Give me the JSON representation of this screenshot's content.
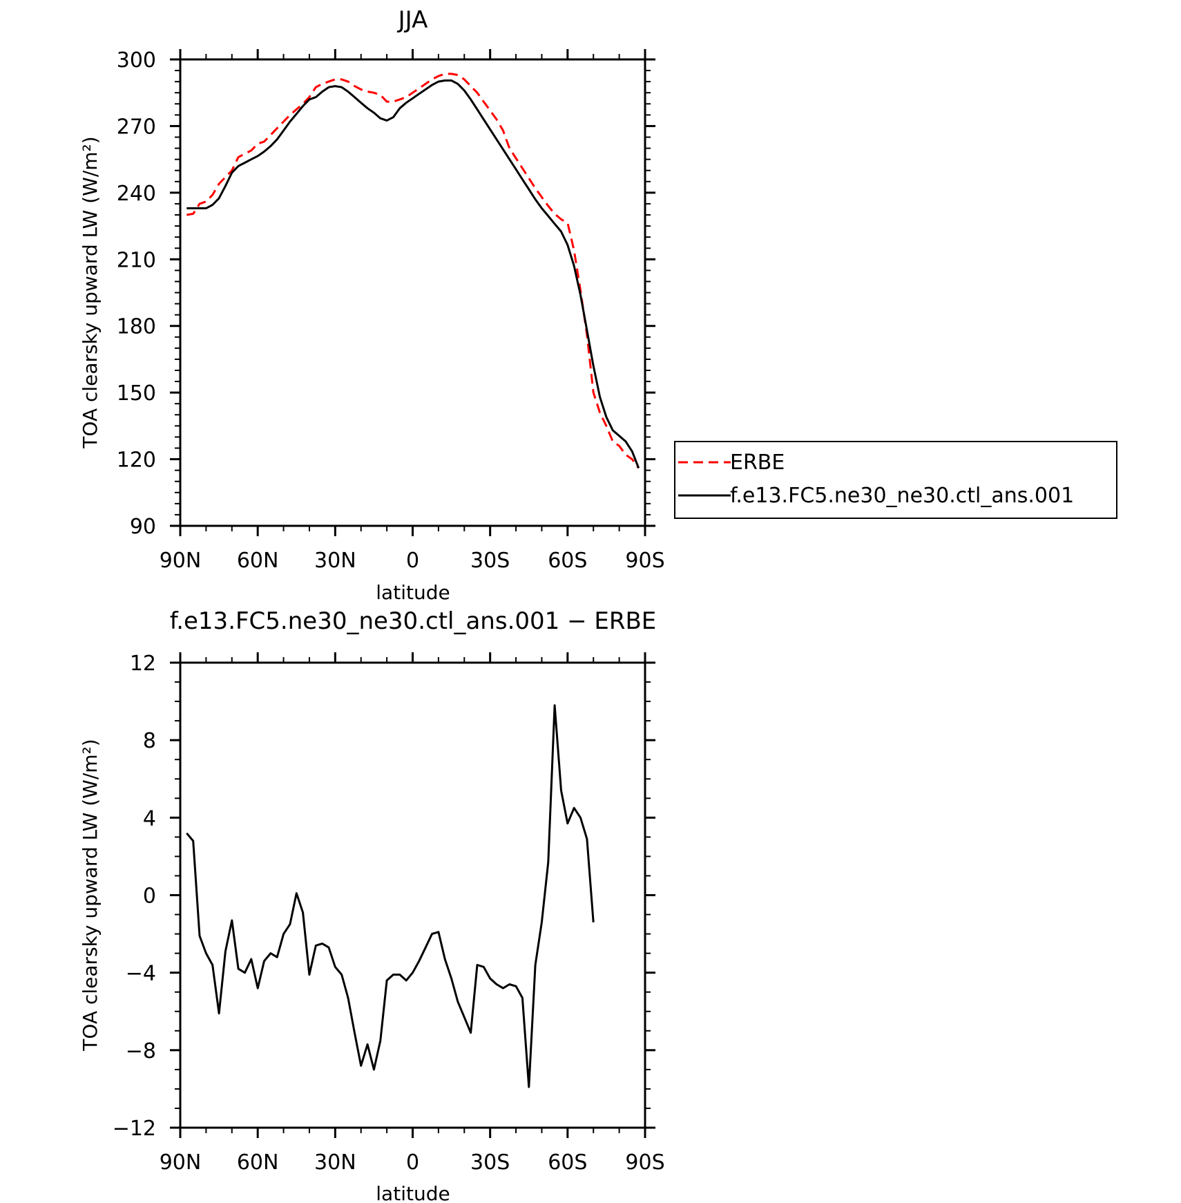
{
  "chart_data": [
    {
      "type": "line",
      "title": "JJA",
      "xlabel": "latitude",
      "ylabel": "TOA clearsky upward LW (W/m²)",
      "xlim": [
        90,
        -90
      ],
      "ylim": [
        90,
        300
      ],
      "x_ticks": [
        {
          "value": 90,
          "label": "90N"
        },
        {
          "value": 60,
          "label": "60N"
        },
        {
          "value": 30,
          "label": "30N"
        },
        {
          "value": 0,
          "label": "0"
        },
        {
          "value": -30,
          "label": "30S"
        },
        {
          "value": -60,
          "label": "60S"
        },
        {
          "value": -90,
          "label": "90S"
        }
      ],
      "y_ticks": [
        {
          "value": 90,
          "label": "90"
        },
        {
          "value": 120,
          "label": "120"
        },
        {
          "value": 150,
          "label": "150"
        },
        {
          "value": 180,
          "label": "180"
        },
        {
          "value": 210,
          "label": "210"
        },
        {
          "value": 240,
          "label": "240"
        },
        {
          "value": 270,
          "label": "270"
        },
        {
          "value": 300,
          "label": "300"
        }
      ],
      "legend": "right",
      "series": [
        {
          "name": "ERBE",
          "color": "#ff0000",
          "dash": "dashed",
          "points": [
            [
              87.5,
              230
            ],
            [
              85,
              230.5
            ],
            [
              82.5,
              235
            ],
            [
              80,
              236
            ],
            [
              77.5,
              239
            ],
            [
              75,
              244
            ],
            [
              72.5,
              247
            ],
            [
              70,
              250
            ],
            [
              67.5,
              256
            ],
            [
              65,
              257.5
            ],
            [
              62.5,
              259
            ],
            [
              60,
              262
            ],
            [
              57.5,
              263
            ],
            [
              55,
              266
            ],
            [
              52.5,
              269
            ],
            [
              50,
              272
            ],
            [
              47.5,
              275
            ],
            [
              45,
              277.5
            ],
            [
              42.5,
              280
            ],
            [
              40,
              283
            ],
            [
              37.5,
              287.5
            ],
            [
              35,
              289
            ],
            [
              32.5,
              290
            ],
            [
              30,
              291
            ],
            [
              27.5,
              291
            ],
            [
              25,
              290
            ],
            [
              22.5,
              288
            ],
            [
              20,
              286.5
            ],
            [
              17.5,
              285.5
            ],
            [
              15,
              285
            ],
            [
              12.5,
              284
            ],
            [
              10,
              281
            ],
            [
              7.5,
              281
            ],
            [
              5,
              282
            ],
            [
              2.5,
              283
            ],
            [
              0,
              285
            ],
            [
              -2.5,
              287
            ],
            [
              -5,
              289
            ],
            [
              -7.5,
              291
            ],
            [
              -10,
              292.5
            ],
            [
              -12.5,
              293.5
            ],
            [
              -15,
              293.5
            ],
            [
              -17.5,
              293
            ],
            [
              -20,
              291
            ],
            [
              -22.5,
              288
            ],
            [
              -25,
              285
            ],
            [
              -27.5,
              281
            ],
            [
              -30,
              277
            ],
            [
              -32.5,
              273
            ],
            [
              -35,
              268
            ],
            [
              -37.5,
              260
            ],
            [
              -40,
              255.5
            ],
            [
              -42.5,
              251
            ],
            [
              -45,
              246.5
            ],
            [
              -47.5,
              242
            ],
            [
              -50,
              238
            ],
            [
              -52.5,
              234
            ],
            [
              -55,
              230.5
            ],
            [
              -57.5,
              228
            ],
            [
              -60,
              226.5
            ],
            [
              -62.5,
              214
            ],
            [
              -65,
              196
            ],
            [
              -67.5,
              176
            ],
            [
              -70,
              150
            ],
            [
              -72.5,
              141
            ],
            [
              -75,
              135
            ],
            [
              -77.5,
              128
            ],
            [
              -80,
              126
            ],
            [
              -82.5,
              122
            ],
            [
              -85,
              120
            ],
            [
              -87.5,
              116
            ]
          ]
        },
        {
          "name": "f.e13.FC5.ne30_ne30.ctl_ans.001",
          "color": "#000000",
          "dash": "solid",
          "points": [
            [
              87.5,
              233
            ],
            [
              85,
              233
            ],
            [
              82.5,
              233
            ],
            [
              80,
              233
            ],
            [
              77.5,
              234.5
            ],
            [
              75,
              237.5
            ],
            [
              72.5,
              243
            ],
            [
              70,
              249
            ],
            [
              67.5,
              252
            ],
            [
              65,
              253.5
            ],
            [
              62.5,
              255
            ],
            [
              60,
              256.5
            ],
            [
              57.5,
              258.5
            ],
            [
              55,
              261
            ],
            [
              52.5,
              264
            ],
            [
              50,
              268
            ],
            [
              47.5,
              272
            ],
            [
              45,
              275.5
            ],
            [
              42.5,
              279
            ],
            [
              40,
              282
            ],
            [
              37.5,
              283
            ],
            [
              35,
              285.5
            ],
            [
              32.5,
              287.5
            ],
            [
              30,
              288
            ],
            [
              27.5,
              287.5
            ],
            [
              25,
              285.5
            ],
            [
              22.5,
              283
            ],
            [
              20,
              280.5
            ],
            [
              17.5,
              278
            ],
            [
              15,
              276
            ],
            [
              12.5,
              273.5
            ],
            [
              10,
              272.5
            ],
            [
              7.5,
              274
            ],
            [
              5,
              278
            ],
            [
              2.5,
              280.5
            ],
            [
              0,
              282.5
            ],
            [
              -2.5,
              284.5
            ],
            [
              -5,
              286.5
            ],
            [
              -7.5,
              288.5
            ],
            [
              -10,
              290
            ],
            [
              -12.5,
              290.5
            ],
            [
              -15,
              290.5
            ],
            [
              -17.5,
              289
            ],
            [
              -20,
              286
            ],
            [
              -22.5,
              282
            ],
            [
              -25,
              277.5
            ],
            [
              -27.5,
              273
            ],
            [
              -30,
              268.5
            ],
            [
              -32.5,
              264
            ],
            [
              -35,
              259.5
            ],
            [
              -37.5,
              255
            ],
            [
              -40,
              250.5
            ],
            [
              -42.5,
              246
            ],
            [
              -45,
              241.5
            ],
            [
              -47.5,
              237
            ],
            [
              -50,
              233
            ],
            [
              -52.5,
              229.5
            ],
            [
              -55,
              226
            ],
            [
              -57.5,
              222.5
            ],
            [
              -60,
              216.5
            ],
            [
              -62.5,
              207
            ],
            [
              -65,
              194
            ],
            [
              -67.5,
              178
            ],
            [
              -70,
              162
            ],
            [
              -72.5,
              148
            ],
            [
              -75,
              139
            ],
            [
              -77.5,
              133
            ],
            [
              -80,
              130.5
            ],
            [
              -82.5,
              128
            ],
            [
              -85,
              123.5
            ],
            [
              -87.5,
              116
            ]
          ]
        }
      ]
    },
    {
      "type": "line",
      "title": "f.e13.FC5.ne30_ne30.ctl_ans.001 − ERBE",
      "xlabel": "latitude",
      "ylabel": "TOA clearsky upward LW (W/m²)",
      "xlim": [
        90,
        -90
      ],
      "ylim": [
        -12,
        12
      ],
      "x_ticks": [
        {
          "value": 90,
          "label": "90N"
        },
        {
          "value": 60,
          "label": "60N"
        },
        {
          "value": 30,
          "label": "30N"
        },
        {
          "value": 0,
          "label": "0"
        },
        {
          "value": -30,
          "label": "30S"
        },
        {
          "value": -60,
          "label": "60S"
        },
        {
          "value": -90,
          "label": "90S"
        }
      ],
      "y_ticks": [
        {
          "value": -12,
          "label": "−12"
        },
        {
          "value": -8,
          "label": "−8"
        },
        {
          "value": -4,
          "label": "−4"
        },
        {
          "value": 0,
          "label": "0"
        },
        {
          "value": 4,
          "label": "4"
        },
        {
          "value": 8,
          "label": "8"
        },
        {
          "value": 12,
          "label": "12"
        }
      ],
      "series": [
        {
          "name": "f.e13.FC5.ne30_ne30.ctl_ans.001 − ERBE",
          "color": "#000000",
          "dash": "solid",
          "points": [
            [
              87.5,
              3.2
            ],
            [
              85,
              2.8
            ],
            [
              82.5,
              -2.1
            ],
            [
              80,
              -3.0
            ],
            [
              77.5,
              -3.6
            ],
            [
              75,
              -6.1
            ],
            [
              72.5,
              -2.9
            ],
            [
              70,
              -1.3
            ],
            [
              67.5,
              -3.8
            ],
            [
              65,
              -4.0
            ],
            [
              62.5,
              -3.3
            ],
            [
              60,
              -4.8
            ],
            [
              57.5,
              -3.4
            ],
            [
              55,
              -3.0
            ],
            [
              52.5,
              -3.2
            ],
            [
              50,
              -2.0
            ],
            [
              47.5,
              -1.5
            ],
            [
              45,
              0.1
            ],
            [
              42.5,
              -0.9
            ],
            [
              40,
              -4.1
            ],
            [
              37.5,
              -2.6
            ],
            [
              35,
              -2.5
            ],
            [
              32.5,
              -2.7
            ],
            [
              30,
              -3.7
            ],
            [
              27.5,
              -4.1
            ],
            [
              25,
              -5.3
            ],
            [
              22.5,
              -7.1
            ],
            [
              20,
              -8.8
            ],
            [
              17.5,
              -7.7
            ],
            [
              15,
              -9.0
            ],
            [
              12.5,
              -7.5
            ],
            [
              10,
              -4.4
            ],
            [
              7.5,
              -4.1
            ],
            [
              5,
              -4.1
            ],
            [
              2.5,
              -4.4
            ],
            [
              0,
              -4.0
            ],
            [
              -2.5,
              -3.4
            ],
            [
              -5,
              -2.7
            ],
            [
              -7.5,
              -2.0
            ],
            [
              -10,
              -1.9
            ],
            [
              -12.5,
              -3.3
            ],
            [
              -15,
              -4.3
            ],
            [
              -17.5,
              -5.5
            ],
            [
              -20,
              -6.3
            ],
            [
              -22.5,
              -7.1
            ],
            [
              -25,
              -3.6
            ],
            [
              -27.5,
              -3.7
            ],
            [
              -30,
              -4.3
            ],
            [
              -32.5,
              -4.6
            ],
            [
              -35,
              -4.8
            ],
            [
              -37.5,
              -4.6
            ],
            [
              -40,
              -4.7
            ],
            [
              -42.5,
              -5.3
            ],
            [
              -45,
              -9.9
            ],
            [
              -47.5,
              -3.6
            ],
            [
              -50,
              -1.4
            ],
            [
              -52.5,
              1.7
            ],
            [
              -55,
              9.8
            ],
            [
              -57.5,
              5.4
            ],
            [
              -60,
              3.7
            ],
            [
              -62.5,
              4.5
            ],
            [
              -65,
              4.0
            ],
            [
              -67.5,
              2.9
            ],
            [
              -70,
              -1.4
            ]
          ]
        }
      ]
    }
  ]
}
